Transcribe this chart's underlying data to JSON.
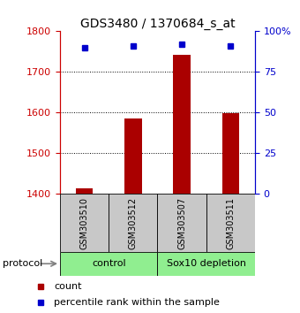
{
  "title": "GDS3480 / 1370684_s_at",
  "samples": [
    "GSM303510",
    "GSM303512",
    "GSM303507",
    "GSM303511"
  ],
  "counts": [
    1413,
    1585,
    1743,
    1598
  ],
  "percentiles": [
    90,
    91,
    92,
    91
  ],
  "ylim_left": [
    1400,
    1800
  ],
  "ylim_right": [
    0,
    100
  ],
  "yticks_left": [
    1400,
    1500,
    1600,
    1700,
    1800
  ],
  "yticks_right": [
    0,
    25,
    50,
    75,
    100
  ],
  "ytick_labels_right": [
    "0",
    "25",
    "50",
    "75",
    "100%"
  ],
  "bar_color": "#AA0000",
  "dot_color": "#0000CC",
  "bar_bottom": 1400,
  "groups": [
    {
      "label": "control",
      "color": "#90EE90"
    },
    {
      "label": "Sox10 depletion",
      "color": "#90EE90"
    }
  ],
  "protocol_label": "protocol",
  "legend_items": [
    {
      "color": "#AA0000",
      "label": "count"
    },
    {
      "color": "#0000CC",
      "label": "percentile rank within the sample"
    }
  ],
  "bg_color": "#FFFFFF",
  "left_tick_color": "#CC0000",
  "right_tick_color": "#0000CC",
  "sample_box_color": "#C8C8C8",
  "title_fontsize": 10,
  "tick_fontsize": 8,
  "sample_fontsize": 7,
  "proto_fontsize": 8,
  "legend_fontsize": 8
}
